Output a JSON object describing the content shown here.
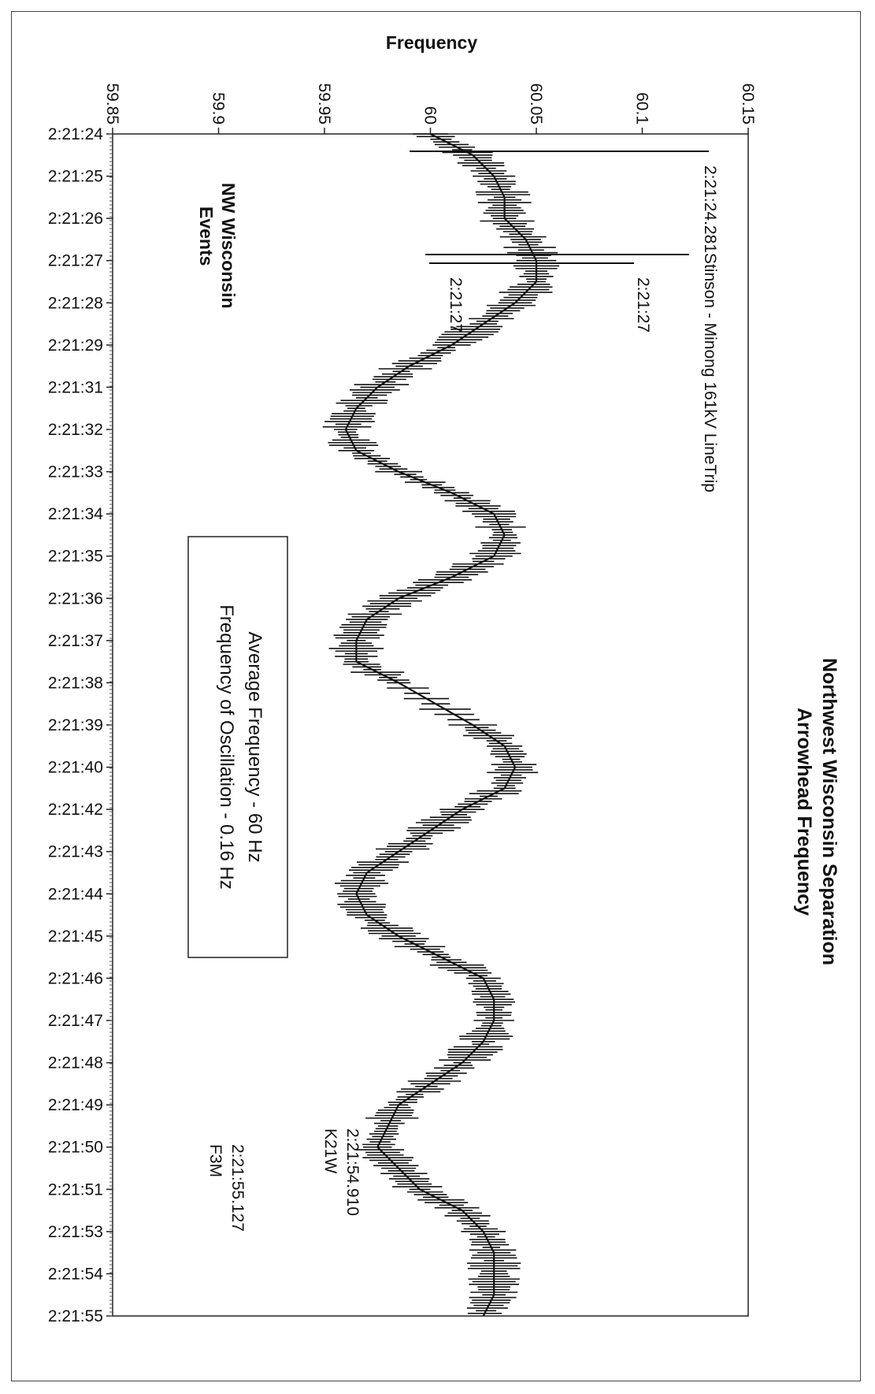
{
  "chart_data": {
    "type": "line",
    "title": "Northwest Wisconsin Separation",
    "subtitle": "Arrowhead Frequency",
    "xlabel": "",
    "ylabel": "Frequency",
    "ylim": [
      59.85,
      60.15
    ],
    "y_ticks": [
      "59.85",
      "59.9",
      "59.95",
      "60",
      "60.05",
      "60.1",
      "60.15"
    ],
    "x_ticks": [
      "2:21:24",
      "2:21:25",
      "2:21:26",
      "2:21:27",
      "2:21:28",
      "2:21:29",
      "2:21:31",
      "2:21:32",
      "2:21:33",
      "2:21:34",
      "2:21:35",
      "2:21:36",
      "2:21:37",
      "2:21:38",
      "2:21:39",
      "2:21:40",
      "2:21:42",
      "2:21:43",
      "2:21:44",
      "2:21:45",
      "2:21:46",
      "2:21:47",
      "2:21:48",
      "2:21:49",
      "2:21:50",
      "2:21:51",
      "2:21:53",
      "2:21:54",
      "2:21:55"
    ],
    "series": [
      {
        "points": [
          [
            0,
            60.0
          ],
          [
            0.5,
            60.02
          ],
          [
            1,
            60.03
          ],
          [
            1.5,
            60.035
          ],
          [
            2,
            60.035
          ],
          [
            2.5,
            60.045
          ],
          [
            3,
            60.05
          ],
          [
            3.5,
            60.05
          ],
          [
            4,
            60.04
          ],
          [
            4.5,
            60.025
          ],
          [
            5,
            60.01
          ],
          [
            5.5,
            59.99
          ],
          [
            6,
            59.975
          ],
          [
            6.5,
            59.965
          ],
          [
            7,
            59.96
          ],
          [
            7.5,
            59.965
          ],
          [
            8,
            59.985
          ],
          [
            8.5,
            60.01
          ],
          [
            9,
            60.03
          ],
          [
            9.5,
            60.035
          ],
          [
            10,
            60.03
          ],
          [
            10.5,
            60.01
          ],
          [
            11,
            59.985
          ],
          [
            11.5,
            59.97
          ],
          [
            12,
            59.965
          ],
          [
            12.5,
            59.965
          ],
          [
            13,
            59.985
          ],
          [
            14,
            60.02
          ],
          [
            14.5,
            60.035
          ],
          [
            15,
            60.04
          ],
          [
            15.5,
            60.035
          ],
          [
            16,
            60.015
          ],
          [
            16.5,
            60.0
          ],
          [
            17,
            59.985
          ],
          [
            17.5,
            59.97
          ],
          [
            18,
            59.965
          ],
          [
            18.5,
            59.97
          ],
          [
            19,
            59.985
          ],
          [
            19.5,
            60.005
          ],
          [
            20,
            60.025
          ],
          [
            20.5,
            60.03
          ],
          [
            21,
            60.03
          ],
          [
            21.5,
            60.025
          ],
          [
            22,
            60.015
          ],
          [
            22.5,
            60.0
          ],
          [
            23,
            59.985
          ],
          [
            23.5,
            59.98
          ],
          [
            24,
            59.975
          ],
          [
            24.5,
            59.985
          ],
          [
            25,
            59.995
          ],
          [
            25.5,
            60.015
          ],
          [
            26,
            60.025
          ],
          [
            26.5,
            60.03
          ],
          [
            27,
            60.03
          ],
          [
            27.5,
            60.03
          ],
          [
            28,
            60.025
          ]
        ]
      }
    ],
    "annotations": {
      "stinson": "2:21:24.281Stinson - Minong 161kV LineTrip",
      "t2127a": "2:21:27",
      "t2127b": "2:21:27",
      "k21w_time": "2:21:54.910",
      "k21w": "K21W",
      "f3m_time": "2:21:55.127",
      "f3m": "F3M",
      "nw_line1": "NW Wisconsin",
      "nw_line2": "Events",
      "box_line1": "Average Frequency - 60 Hz",
      "box_line2": "Frequency of Oscillation - 0.16 Hz"
    },
    "grid": false,
    "legend": "none"
  }
}
